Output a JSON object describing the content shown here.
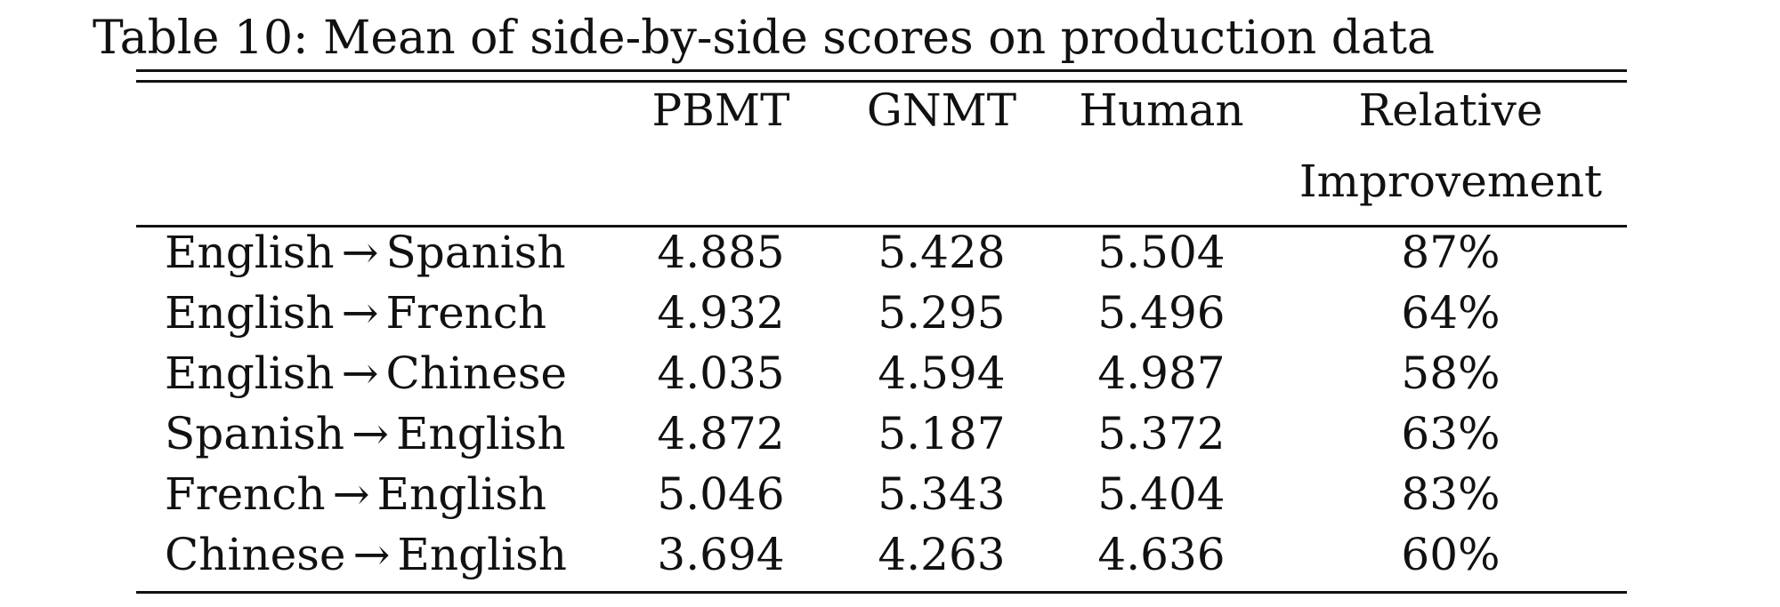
{
  "caption": "Table 10: Mean of side-by-side scores on production data",
  "columns": {
    "pbmt": "PBMT",
    "gnmt": "GNMT",
    "human": "Human",
    "relative_line1": "Relative",
    "relative_line2": "Improvement"
  },
  "arrow": "→",
  "rows": [
    {
      "source": "English",
      "target": "Spanish",
      "pbmt": "4.885",
      "gnmt": "5.428",
      "human": "5.504",
      "relative": "87%"
    },
    {
      "source": "English",
      "target": "French",
      "pbmt": "4.932",
      "gnmt": "5.295",
      "human": "5.496",
      "relative": "64%"
    },
    {
      "source": "English",
      "target": "Chinese",
      "pbmt": "4.035",
      "gnmt": "4.594",
      "human": "4.987",
      "relative": "58%"
    },
    {
      "source": "Spanish",
      "target": "English",
      "pbmt": "4.872",
      "gnmt": "5.187",
      "human": "5.372",
      "relative": "63%"
    },
    {
      "source": "French",
      "target": "English",
      "pbmt": "5.046",
      "gnmt": "5.343",
      "human": "5.404",
      "relative": "83%"
    },
    {
      "source": "Chinese",
      "target": "English",
      "pbmt": "3.694",
      "gnmt": "4.263",
      "human": "4.636",
      "relative": "60%"
    }
  ]
}
